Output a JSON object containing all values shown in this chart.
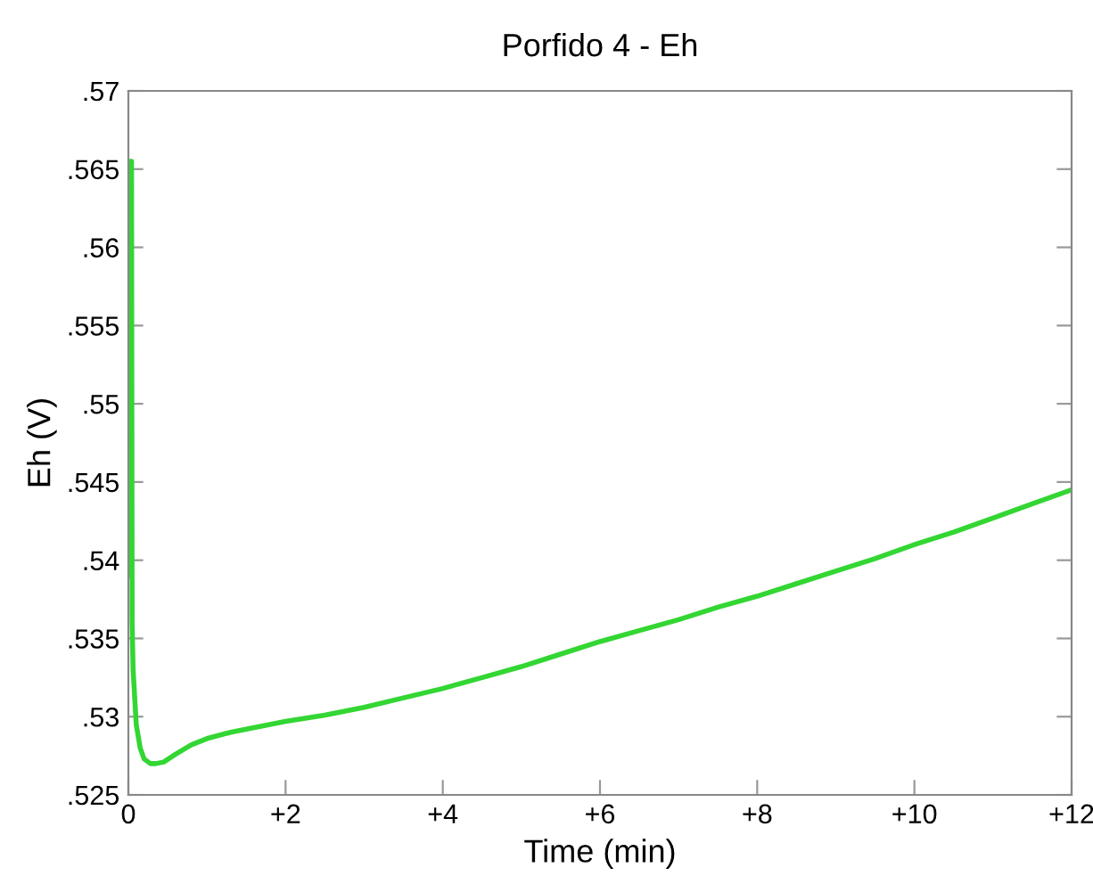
{
  "chart_data": {
    "type": "line",
    "title": "Porfido 4 - Eh",
    "xlabel": "Time (min)",
    "ylabel": "Eh (V)",
    "series": [
      {
        "color": "#33d633",
        "x": [
          0,
          0.008,
          0.016,
          0.024,
          0.032,
          0.04,
          0.048,
          0.06,
          0.1,
          0.15,
          0.2,
          0.28,
          0.35,
          0.45,
          0.6,
          0.8,
          1.0,
          1.3,
          1.6,
          2,
          2.5,
          3,
          3.5,
          4,
          4.5,
          5,
          5.5,
          6,
          6.5,
          7,
          7.5,
          8,
          8.5,
          9,
          9.5,
          10,
          10.5,
          11,
          11.5,
          12
        ],
        "values": [
          0.539,
          0.5655,
          0.539,
          0.5655,
          0.539,
          0.5655,
          0.536,
          0.533,
          0.5295,
          0.528,
          0.5273,
          0.527,
          0.527,
          0.5271,
          0.5276,
          0.5282,
          0.5286,
          0.529,
          0.5293,
          0.5297,
          0.5301,
          0.5306,
          0.5312,
          0.5318,
          0.5325,
          0.5332,
          0.534,
          0.5348,
          0.5355,
          0.5362,
          0.537,
          0.5377,
          0.5385,
          0.5393,
          0.5401,
          0.541,
          0.5418,
          0.5427,
          0.5436,
          0.5445
        ]
      }
    ],
    "xlim": [
      0,
      12
    ],
    "xticks": [
      0,
      {
        "value": 2,
        "label": "+2"
      },
      {
        "value": 4,
        "label": "+4"
      },
      {
        "value": 6,
        "label": "+6"
      },
      {
        "value": 8,
        "label": "+8"
      },
      {
        "value": 10,
        "label": "+10"
      },
      {
        "value": 12,
        "label": "+12"
      }
    ],
    "ylim": [
      0.525,
      0.57
    ],
    "yticks": [
      {
        "value": 0.525,
        "label": ".525"
      },
      {
        "value": 0.53,
        "label": ".53"
      },
      {
        "value": 0.535,
        "label": ".535"
      },
      {
        "value": 0.54,
        "label": ".54"
      },
      {
        "value": 0.545,
        "label": ".545"
      },
      {
        "value": 0.55,
        "label": ".55"
      },
      {
        "value": 0.555,
        "label": ".555"
      },
      {
        "value": 0.56,
        "label": ".56"
      },
      {
        "value": 0.565,
        "label": ".565"
      },
      {
        "value": 0.57,
        "label": ".57"
      }
    ],
    "grid": false,
    "legend": false,
    "marker": "none",
    "line_style": "solid"
  }
}
